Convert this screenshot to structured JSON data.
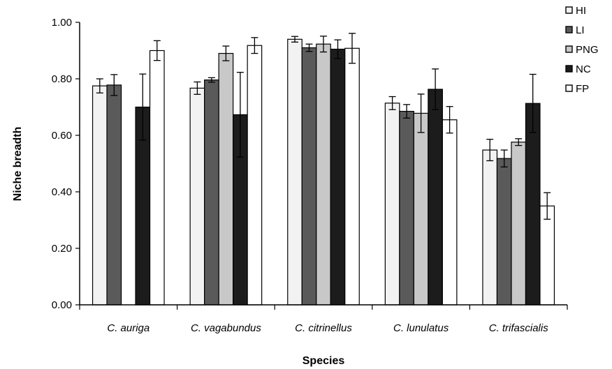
{
  "chart_data": {
    "type": "bar",
    "xlabel": "Species",
    "ylabel": "Niche breadth",
    "ylim": [
      0,
      1
    ],
    "yticks": [
      "0.00",
      "0.20",
      "0.40",
      "0.60",
      "0.80",
      "1.00"
    ],
    "grid": false,
    "legend_position": "top-right",
    "categories": [
      "C. auriga",
      "C. vagabundus",
      "C. citrinellus",
      "C. lunulatus",
      "C. trifascialis"
    ],
    "series": [
      {
        "name": "HI",
        "color": "#f2f2f2",
        "values": [
          0.775,
          0.767,
          0.94,
          0.714,
          0.548
        ],
        "errors": [
          0.025,
          0.022,
          0.01,
          0.023,
          0.038
        ]
      },
      {
        "name": "LI",
        "color": "#5a5a5a",
        "values": [
          0.778,
          0.796,
          0.91,
          0.685,
          0.518
        ],
        "errors": [
          0.037,
          0.008,
          0.013,
          0.024,
          0.03
        ]
      },
      {
        "name": "PNG",
        "color": "#c8c8c8",
        "values": [
          null,
          0.89,
          0.923,
          0.678,
          0.576
        ],
        "errors": [
          null,
          0.026,
          0.028,
          0.068,
          0.012
        ]
      },
      {
        "name": "NC",
        "color": "#1c1c1c",
        "values": [
          0.7,
          0.673,
          0.905,
          0.763,
          0.713
        ],
        "errors": [
          0.117,
          0.15,
          0.033,
          0.072,
          0.103
        ]
      },
      {
        "name": "FP",
        "color": "#ffffff",
        "values": [
          0.9,
          0.918,
          0.908,
          0.655,
          0.35
        ],
        "errors": [
          0.035,
          0.028,
          0.053,
          0.047,
          0.047
        ]
      }
    ]
  }
}
